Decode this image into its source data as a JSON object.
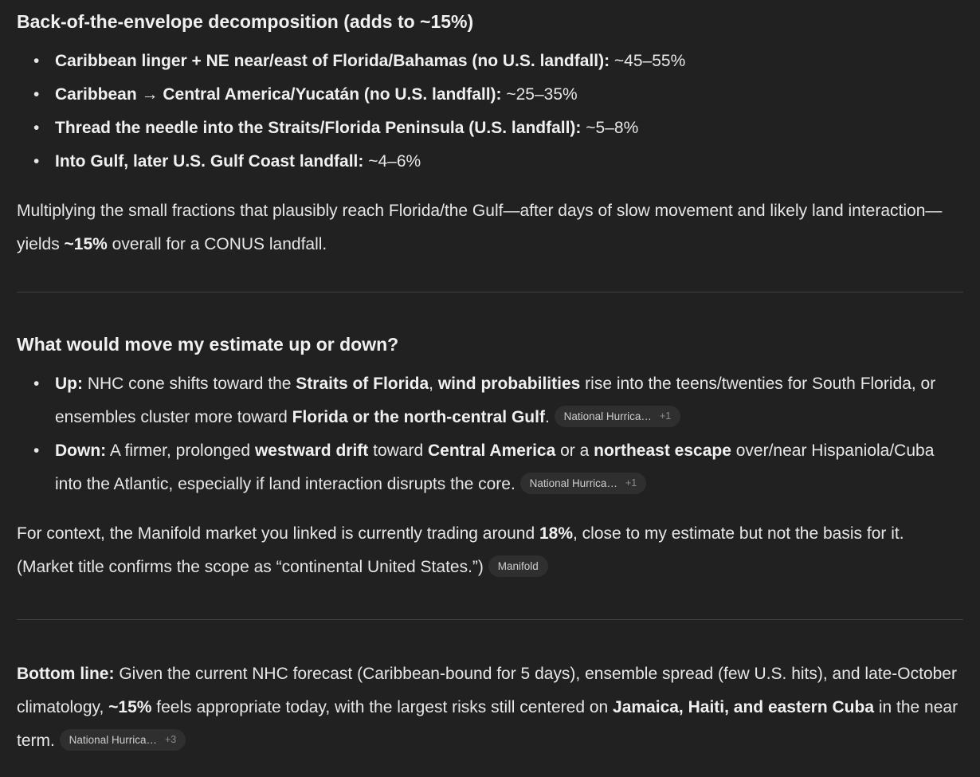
{
  "colors": {
    "background": "#212121",
    "body_text": "#e7e7e7",
    "bold_text": "#f0f0f0",
    "divider": "#414141",
    "pill_background": "#2f2f2f",
    "pill_text": "#cdcdcd",
    "pill_extra_text": "#8d8d8d"
  },
  "section_decomposition": {
    "heading": "Back-of-the-envelope decomposition (adds to ~15%)",
    "bullets": [
      {
        "segments": [
          {
            "t": "Caribbean linger + NE near/east of Florida/Bahamas (no U.S. landfall):",
            "b": true
          },
          {
            "t": " ~45–55%",
            "b": false
          }
        ]
      },
      {
        "segments": [
          {
            "t": "Caribbean",
            "b": true
          },
          {
            "t": " → ",
            "b": false
          },
          {
            "t": "Central America/Yucatán (no U.S. landfall):",
            "b": true
          },
          {
            "t": " ~25–35%",
            "b": false
          }
        ]
      },
      {
        "segments": [
          {
            "t": "Thread the needle into the Straits/Florida Peninsula (U.S. landfall):",
            "b": true
          },
          {
            "t": " ~5–8%",
            "b": false
          }
        ]
      },
      {
        "segments": [
          {
            "t": "Into Gulf, later U.S. Gulf Coast landfall:",
            "b": true
          },
          {
            "t": " ~4–6%",
            "b": false
          }
        ]
      }
    ],
    "paragraph": [
      {
        "t": "Multiplying the small fractions that plausibly reach Florida/the Gulf—after days of slow movement and likely land interaction—yields ",
        "b": false
      },
      {
        "t": "~15%",
        "b": true
      },
      {
        "t": " overall for a CONUS landfall.",
        "b": false
      }
    ]
  },
  "section_estimate": {
    "heading": "What would move my estimate up or down?",
    "bullets": [
      {
        "segments": [
          {
            "t": "Up:",
            "b": true
          },
          {
            "t": " NHC cone shifts toward the ",
            "b": false
          },
          {
            "t": "Straits of Florida",
            "b": true
          },
          {
            "t": ", ",
            "b": false
          },
          {
            "t": "wind probabilities",
            "b": true
          },
          {
            "t": " rise into the teens/twenties for South Florida, or ensembles cluster more toward ",
            "b": false
          },
          {
            "t": "Florida or the north-central Gulf",
            "b": true
          },
          {
            "t": ". ",
            "b": false
          },
          {
            "pill": {
              "label": "National Hurrica…",
              "extra": "+1"
            }
          }
        ]
      },
      {
        "segments": [
          {
            "t": "Down:",
            "b": true
          },
          {
            "t": " A firmer, prolonged ",
            "b": false
          },
          {
            "t": "westward drift",
            "b": true
          },
          {
            "t": " toward ",
            "b": false
          },
          {
            "t": "Central America",
            "b": true
          },
          {
            "t": " or a ",
            "b": false
          },
          {
            "t": "northeast escape",
            "b": true
          },
          {
            "t": " over/near Hispaniola/Cuba into the Atlantic, especially if land interaction disrupts the core. ",
            "b": false
          },
          {
            "pill": {
              "label": "National Hurrica…",
              "extra": "+1"
            }
          }
        ]
      }
    ],
    "paragraph": [
      {
        "t": "For context, the Manifold market you linked is currently trading around ",
        "b": false
      },
      {
        "t": "18%",
        "b": true
      },
      {
        "t": ", close to my estimate but not the basis for it. (Market title confirms the scope as “continental United States.”) ",
        "b": false
      },
      {
        "pill": {
          "label": "Manifold",
          "extra": ""
        }
      }
    ]
  },
  "section_bottom_line": {
    "paragraph": [
      {
        "t": "Bottom line:",
        "b": true
      },
      {
        "t": " Given the current NHC forecast (Caribbean-bound for 5 days), ensemble spread (few U.S. hits), and late-October climatology, ",
        "b": false
      },
      {
        "t": "~15%",
        "b": true
      },
      {
        "t": " feels appropriate today, with the largest risks still centered on ",
        "b": false
      },
      {
        "t": "Jamaica, Haiti, and eastern Cuba",
        "b": true
      },
      {
        "t": " in the near term. ",
        "b": false
      },
      {
        "pill": {
          "label": "National Hurrica…",
          "extra": "+3"
        }
      }
    ]
  }
}
